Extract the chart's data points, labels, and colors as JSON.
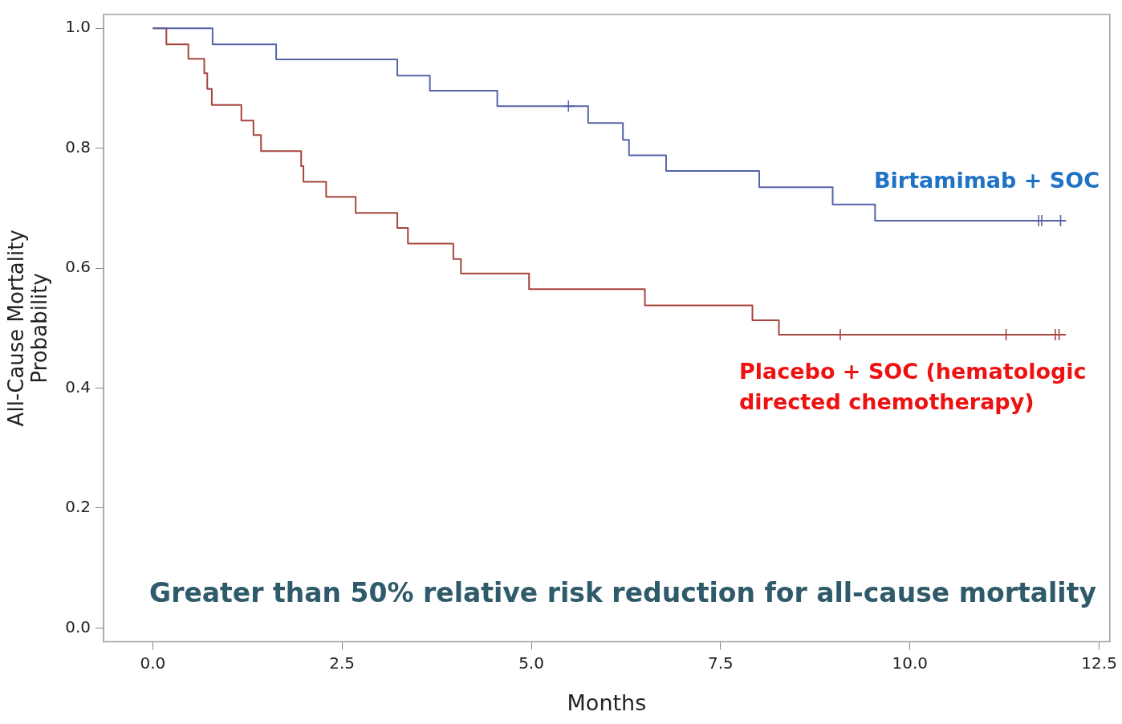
{
  "chart_data": {
    "type": "step",
    "xlabel": "Months",
    "ylabel": "All-Cause Mortality Probability",
    "xlim": [
      -0.65,
      12.64
    ],
    "ylim": [
      -0.023,
      1.023
    ],
    "xticks": [
      {
        "value": 0,
        "label": "0.0"
      },
      {
        "value": 2.5,
        "label": "2.5"
      },
      {
        "value": 5,
        "label": "5.0"
      },
      {
        "value": 7.5,
        "label": "7.5"
      },
      {
        "value": 10,
        "label": "10.0"
      },
      {
        "value": 12.5,
        "label": "12.5"
      }
    ],
    "yticks": [
      {
        "value": 0,
        "label": "0.0"
      },
      {
        "value": 0.2,
        "label": "0.2"
      },
      {
        "value": 0.4,
        "label": "0.4"
      },
      {
        "value": 0.6,
        "label": "0.6"
      },
      {
        "value": 0.8,
        "label": "0.8"
      },
      {
        "value": 1,
        "label": "1.0"
      }
    ],
    "grid": false,
    "legend": false,
    "line_style": "solid",
    "series": [
      {
        "name": "Birtamimab + SOC",
        "color": "#5565a8",
        "x": [
          0,
          0.79,
          1.63,
          3.23,
          3.66,
          4.55,
          5.75,
          6.21,
          6.29,
          6.78,
          8.01,
          8.98,
          9.54,
          12.06
        ],
        "values": [
          1,
          0.973,
          0.948,
          0.921,
          0.896,
          0.87,
          0.842,
          0.814,
          0.788,
          0.762,
          0.735,
          0.706,
          0.679,
          0.679
        ]
      },
      {
        "name": "Placebo + SOC (hematologic directed chemotherapy)",
        "color": "#a8453f",
        "x": [
          0,
          0.18,
          0.47,
          0.68,
          0.72,
          0.78,
          1.17,
          1.33,
          1.43,
          1.96,
          1.99,
          2.29,
          2.68,
          3.23,
          3.37,
          3.97,
          4.07,
          4.97,
          6.5,
          7.92,
          8.27,
          12.06
        ],
        "values": [
          1,
          0.973,
          0.949,
          0.925,
          0.899,
          0.872,
          0.846,
          0.822,
          0.795,
          0.77,
          0.744,
          0.719,
          0.692,
          0.667,
          0.641,
          0.615,
          0.591,
          0.565,
          0.538,
          0.513,
          0.489,
          0.489
        ]
      },
      {
        "color": "#5565a8",
        "type": "scatter",
        "marker": "cross",
        "x": [
          5.49,
          11.7,
          11.74,
          11.99
        ],
        "values": [
          0.87,
          0.679,
          0.679,
          0.679
        ]
      },
      {
        "color": "#a8453f",
        "type": "scatter",
        "marker": "cross",
        "x": [
          9.08,
          11.27,
          11.92,
          11.97
        ],
        "values": [
          0.489,
          0.489,
          0.489,
          0.489
        ]
      }
    ],
    "annotations": [
      "Greater than 50% relative risk reduction for all-cause mortality"
    ]
  }
}
